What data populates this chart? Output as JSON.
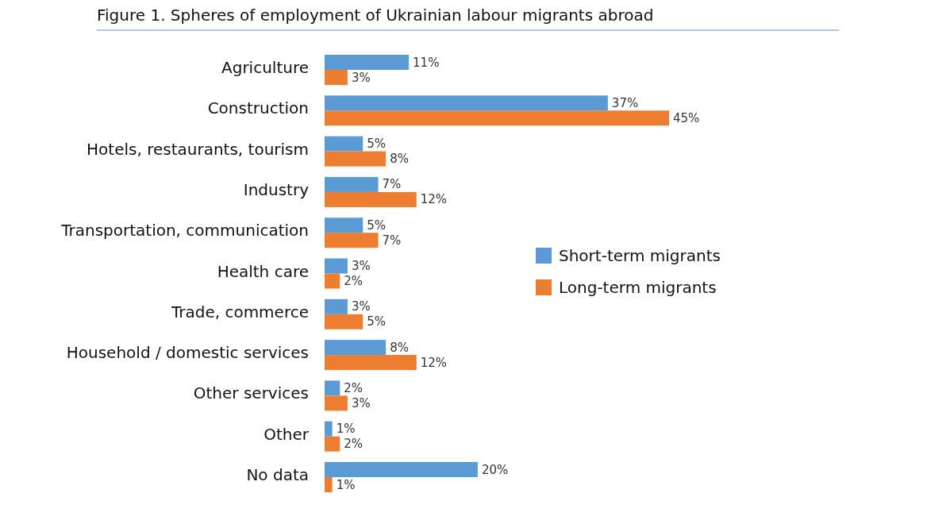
{
  "chart_data": {
    "type": "bar",
    "orientation": "horizontal",
    "title": "Figure 1. Spheres of employment of Ukrainian labour migrants abroad",
    "categories": [
      "Agriculture",
      "Construction",
      "Hotels, restaurants, tourism",
      "Industry",
      "Transportation, communication",
      "Health care",
      "Trade, commerce",
      "Household / domestic services",
      "Other services",
      "Other",
      "No data"
    ],
    "series": [
      {
        "name": "Short-term migrants",
        "color": "#5b9bd5",
        "values": [
          11,
          37,
          5,
          7,
          5,
          3,
          3,
          8,
          2,
          1,
          20
        ],
        "value_labels": [
          "11%",
          "37%",
          "5%",
          "7%",
          "5%",
          "3%",
          "3%",
          "8%",
          "2%",
          "1%",
          "20%"
        ]
      },
      {
        "name": "Long-term migrants",
        "color": "#ed7d31",
        "values": [
          3,
          45,
          8,
          12,
          7,
          2,
          5,
          12,
          3,
          2,
          1
        ],
        "value_labels": [
          "3%",
          "45%",
          "8%",
          "12%",
          "7%",
          "2%",
          "5%",
          "12%",
          "3%",
          "2%",
          "1%"
        ]
      }
    ],
    "legend": "right",
    "grid": false
  }
}
